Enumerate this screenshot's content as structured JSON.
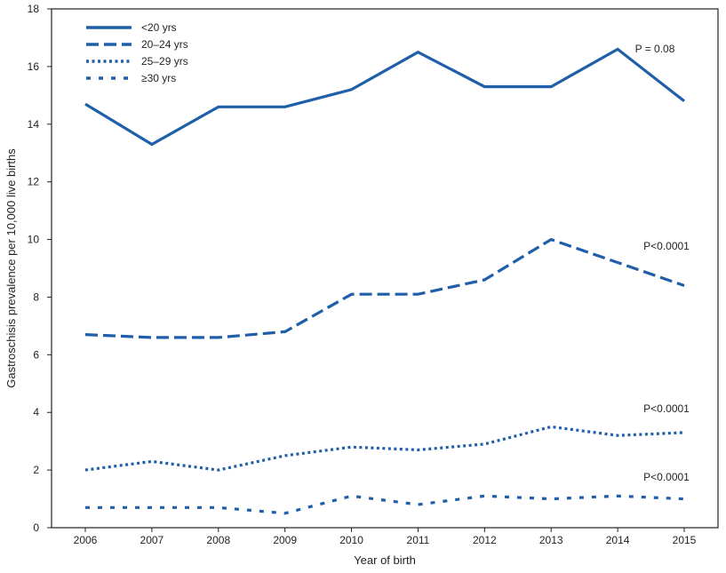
{
  "chart_data": {
    "type": "line",
    "xlabel": "Year of birth",
    "ylabel": "Gastroschisis prevalence per 10,000 live births",
    "ylim": [
      0,
      18
    ],
    "yticks": [
      0,
      2,
      4,
      6,
      8,
      10,
      12,
      14,
      16,
      18
    ],
    "x": [
      2006,
      2007,
      2008,
      2009,
      2010,
      2011,
      2012,
      2013,
      2014,
      2015
    ],
    "line_color": "#1f5ea8",
    "legend_position": "top-left",
    "series": [
      {
        "name": "<20 yrs",
        "style": "solid",
        "values": [
          14.7,
          13.3,
          14.6,
          14.6,
          15.2,
          16.5,
          15.3,
          15.3,
          16.6,
          14.8
        ],
        "annotation": "P = 0.08"
      },
      {
        "name": "20–24 yrs",
        "style": "dashed",
        "values": [
          6.7,
          6.6,
          6.6,
          6.8,
          8.1,
          8.1,
          8.6,
          10.0,
          9.2,
          8.4
        ],
        "annotation": "P<0.0001"
      },
      {
        "name": "25–29 yrs",
        "style": "dotted",
        "values": [
          2.0,
          2.3,
          2.0,
          2.5,
          2.8,
          2.7,
          2.9,
          3.5,
          3.2,
          3.3
        ],
        "annotation": "P<0.0001"
      },
      {
        "name": "≥30 yrs",
        "style": "square-dotted",
        "values": [
          0.7,
          0.7,
          0.7,
          0.5,
          1.1,
          0.8,
          1.1,
          1.0,
          1.1,
          1.0
        ],
        "annotation": "P<0.0001"
      }
    ]
  }
}
